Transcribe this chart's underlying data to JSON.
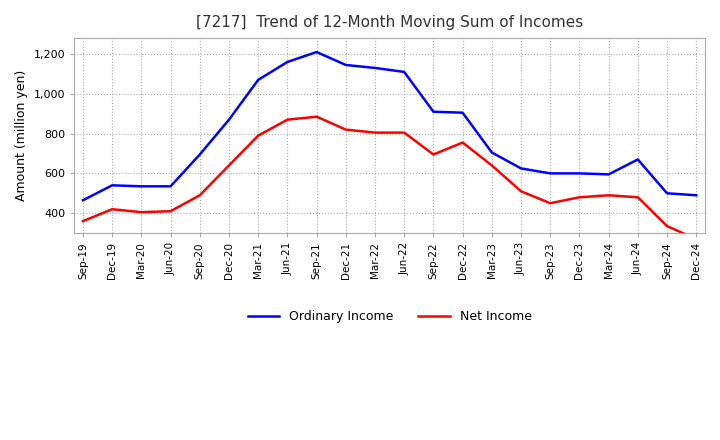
{
  "title": "[7217]  Trend of 12-Month Moving Sum of Incomes",
  "ylabel": "Amount (million yen)",
  "x_labels": [
    "Sep-19",
    "Dec-19",
    "Mar-20",
    "Jun-20",
    "Sep-20",
    "Dec-20",
    "Mar-21",
    "Jun-21",
    "Sep-21",
    "Dec-21",
    "Mar-22",
    "Jun-22",
    "Sep-22",
    "Dec-22",
    "Mar-23",
    "Jun-23",
    "Sep-23",
    "Dec-23",
    "Mar-24",
    "Jun-24",
    "Sep-24",
    "Dec-24"
  ],
  "ordinary_income": [
    465,
    540,
    535,
    535,
    695,
    870,
    1070,
    1160,
    1210,
    1145,
    1130,
    1110,
    910,
    905,
    705,
    625,
    600,
    600,
    595,
    670,
    500,
    490
  ],
  "net_income": [
    360,
    420,
    405,
    410,
    490,
    640,
    790,
    870,
    885,
    820,
    805,
    805,
    695,
    755,
    640,
    510,
    450,
    480,
    490,
    480,
    335,
    270
  ],
  "ordinary_color": "#0000ff",
  "net_color": "#ff0000",
  "ylim": [
    300,
    1280
  ],
  "yticks": [
    400,
    600,
    800,
    1000,
    1200
  ],
  "legend_labels": [
    "Ordinary Income",
    "Net Income"
  ],
  "background_color": "#ffffff"
}
